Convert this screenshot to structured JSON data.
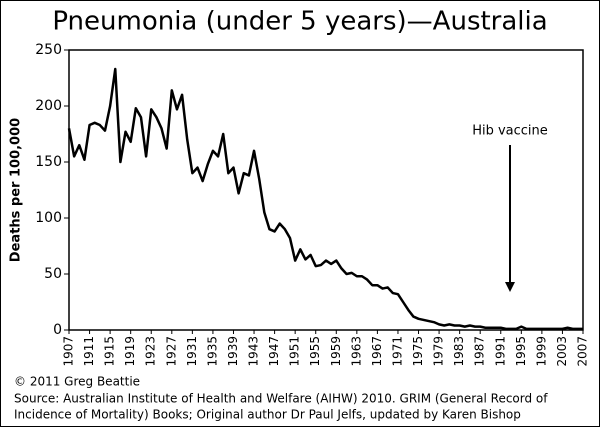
{
  "chart_data": {
    "type": "line",
    "title": "Pneumonia (under 5 years)—Australia",
    "y_label": "Deaths per 100,000",
    "annotation": "Hib vaccine",
    "copyright": "© 2011 Greg Beattie",
    "source": [
      "Source: Australian Institute of Health and Welfare (AIHW) 2010. GRIM (General Record of",
      "Incidence of Mortality) Books; Original author Dr Paul Jelfs, updated by Karen Bishop"
    ],
    "x": [
      1907,
      1908,
      1909,
      1910,
      1911,
      1912,
      1913,
      1914,
      1915,
      1916,
      1917,
      1918,
      1919,
      1920,
      1921,
      1922,
      1923,
      1924,
      1925,
      1926,
      1927,
      1928,
      1929,
      1930,
      1931,
      1932,
      1933,
      1934,
      1935,
      1936,
      1937,
      1938,
      1939,
      1940,
      1941,
      1942,
      1943,
      1944,
      1945,
      1946,
      1947,
      1948,
      1949,
      1950,
      1951,
      1952,
      1953,
      1954,
      1955,
      1956,
      1957,
      1958,
      1959,
      1960,
      1961,
      1962,
      1963,
      1964,
      1965,
      1966,
      1967,
      1968,
      1969,
      1970,
      1971,
      1972,
      1973,
      1974,
      1975,
      1976,
      1977,
      1978,
      1979,
      1980,
      1981,
      1982,
      1983,
      1984,
      1985,
      1986,
      1987,
      1988,
      1989,
      1990,
      1991,
      1992,
      1993,
      1994,
      1995,
      1996,
      1997,
      1998,
      1999,
      2000,
      2001,
      2002,
      2003,
      2004,
      2005,
      2006,
      2007
    ],
    "series": [
      {
        "color": "#000000",
        "values": [
          180,
          155,
          165,
          152,
          183,
          185,
          183,
          178,
          200,
          233,
          150,
          177,
          168,
          198,
          190,
          155,
          197,
          190,
          180,
          162,
          214,
          197,
          210,
          170,
          140,
          145,
          133,
          148,
          160,
          155,
          175,
          140,
          145,
          122,
          140,
          138,
          160,
          135,
          105,
          90,
          88,
          95,
          90,
          82,
          62,
          72,
          63,
          67,
          57,
          58,
          62,
          59,
          62,
          55,
          50,
          51,
          48,
          48,
          45,
          40,
          40,
          37,
          38,
          33,
          32,
          25,
          18,
          12,
          10,
          9,
          8,
          7,
          5,
          4,
          5,
          4,
          4,
          3,
          4,
          3,
          3,
          2,
          2,
          2,
          2,
          1,
          1,
          1,
          3,
          1,
          1,
          1,
          1,
          1,
          1,
          1,
          1,
          2,
          1,
          1,
          1
        ]
      }
    ],
    "xlim": [
      1907,
      2007
    ],
    "xticks": [
      1907,
      1911,
      1915,
      1919,
      1923,
      1927,
      1931,
      1935,
      1939,
      1943,
      1947,
      1951,
      1955,
      1959,
      1963,
      1967,
      1971,
      1975,
      1979,
      1983,
      1987,
      1991,
      1995,
      1999,
      2003,
      2007
    ],
    "ylim": [
      0,
      250
    ],
    "yticks": [
      0,
      50,
      100,
      150,
      200,
      250
    ]
  }
}
